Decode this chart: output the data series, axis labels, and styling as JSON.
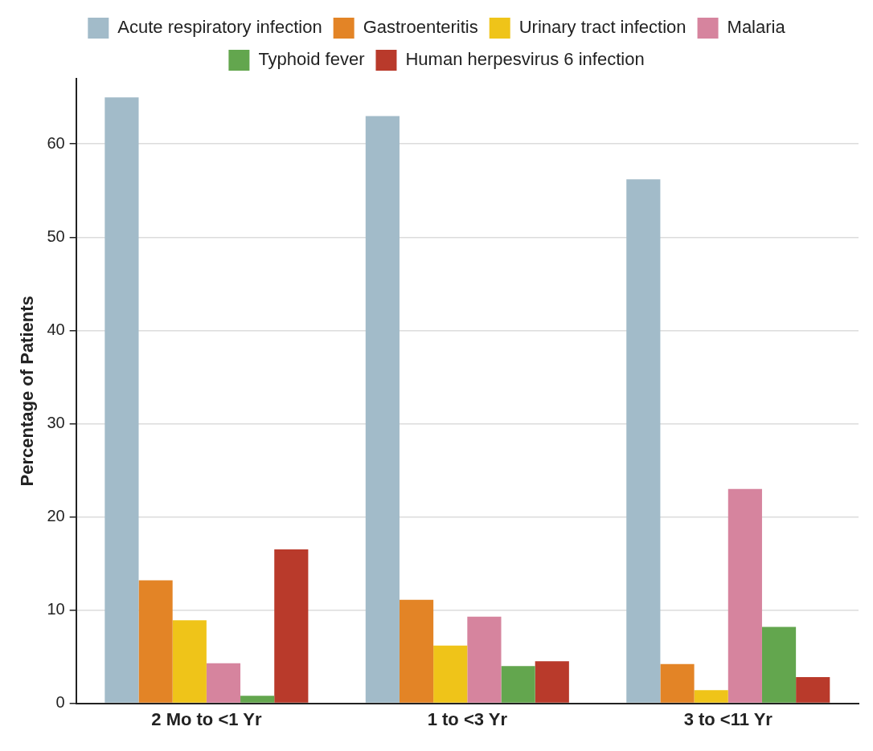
{
  "chart_data": {
    "type": "bar",
    "ylabel": "Percentage of Patients",
    "categories": [
      "2 Mo to <1 Yr",
      "1 to <3 Yr",
      "3 to <11 Yr"
    ],
    "series": [
      {
        "name": "Acute respiratory infection",
        "color": "#a2bbc9",
        "values": [
          65.0,
          63.0,
          56.2
        ]
      },
      {
        "name": "Gastroenteritis",
        "color": "#e38426",
        "values": [
          13.2,
          11.1,
          4.2
        ]
      },
      {
        "name": "Urinary tract infection",
        "color": "#efc419",
        "values": [
          8.9,
          6.2,
          1.4
        ]
      },
      {
        "name": "Malaria",
        "color": "#d6849e",
        "values": [
          4.3,
          9.3,
          23.0
        ]
      },
      {
        "name": "Typhoid fever",
        "color": "#63a64e",
        "values": [
          0.8,
          4.0,
          8.2
        ]
      },
      {
        "name": "Human herpesvirus 6 infection",
        "color": "#b93a2b",
        "values": [
          16.5,
          4.5,
          2.8
        ]
      }
    ],
    "ylim": [
      0,
      67
    ],
    "yticks": [
      0,
      10,
      20,
      30,
      40,
      50,
      60
    ],
    "grid": "y",
    "legend": "top"
  }
}
